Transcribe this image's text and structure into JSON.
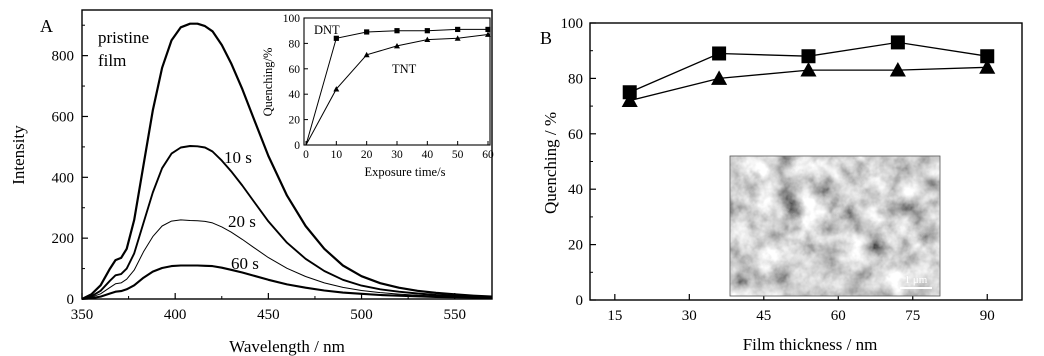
{
  "chart_data": [
    {
      "panel_label": "A",
      "type": "line",
      "xlabel": "Wavelength / nm",
      "ylabel": "Intensity",
      "xlim": [
        350,
        570
      ],
      "ylim": [
        0,
        950
      ],
      "x_ticks": [
        350,
        400,
        450,
        500,
        550
      ],
      "y_ticks": [
        0,
        200,
        400,
        600,
        800
      ],
      "grid": false,
      "x": [
        350,
        355,
        360,
        365,
        368,
        371,
        374,
        378,
        383,
        388,
        393,
        398,
        403,
        408,
        412,
        416,
        420,
        425,
        430,
        436,
        442,
        450,
        460,
        470,
        480,
        490,
        500,
        510,
        520,
        530,
        540,
        550,
        560,
        570
      ],
      "series": [
        {
          "name": "pristine film",
          "values": [
            0,
            15,
            45,
            100,
            128,
            135,
            165,
            260,
            440,
            620,
            760,
            850,
            893,
            905,
            905,
            897,
            880,
            835,
            775,
            690,
            595,
            470,
            340,
            240,
            165,
            110,
            75,
            52,
            37,
            27,
            20,
            15,
            11,
            8
          ]
        },
        {
          "name": "10 s",
          "values": [
            0,
            9,
            27,
            60,
            78,
            82,
            100,
            150,
            250,
            350,
            430,
            478,
            498,
            503,
            502,
            498,
            485,
            455,
            420,
            373,
            322,
            255,
            185,
            132,
            92,
            63,
            44,
            32,
            24,
            18,
            13,
            10,
            8,
            6
          ]
        },
        {
          "name": "20 s",
          "values": [
            0,
            6,
            17,
            38,
            50,
            53,
            65,
            95,
            155,
            205,
            240,
            256,
            260,
            258,
            257,
            255,
            250,
            237,
            220,
            196,
            170,
            136,
            101,
            74,
            53,
            38,
            28,
            21,
            16,
            12,
            10,
            8,
            6,
            5
          ]
        },
        {
          "name": "60 s",
          "values": [
            0,
            3,
            8,
            18,
            24,
            26,
            32,
            45,
            70,
            90,
            102,
            108,
            110,
            110,
            110,
            109,
            108,
            103,
            96,
            87,
            77,
            63,
            48,
            37,
            28,
            21,
            17,
            13,
            11,
            9,
            7,
            6,
            5,
            4
          ]
        }
      ],
      "annotations": [
        "pristine",
        "film",
        "10 s",
        "20 s",
        "60 s"
      ],
      "inset": {
        "type": "line",
        "xlabel": "Exposure time/s",
        "ylabel": "Quenching/%",
        "xlim": [
          0,
          60
        ],
        "ylim": [
          0,
          100
        ],
        "x_ticks": [
          0,
          10,
          20,
          30,
          40,
          50,
          60
        ],
        "y_ticks": [
          0,
          20,
          40,
          60,
          80,
          100
        ],
        "x": [
          0,
          10,
          20,
          30,
          40,
          50,
          60
        ],
        "series": [
          {
            "name": "DNT",
            "marker": "square",
            "values": [
              0,
              84,
              89,
              90,
              90,
              91,
              91
            ]
          },
          {
            "name": "TNT",
            "marker": "triangle",
            "values": [
              0,
              44,
              71,
              78,
              83,
              84,
              87
            ]
          }
        ]
      }
    },
    {
      "panel_label": "B",
      "type": "line",
      "xlabel": "Film  thickness / nm",
      "ylabel": "Quenching / %",
      "xlim": [
        10,
        97
      ],
      "ylim": [
        0,
        100
      ],
      "x_ticks": [
        15,
        30,
        45,
        60,
        75,
        90
      ],
      "y_ticks": [
        0,
        20,
        40,
        60,
        80,
        100
      ],
      "grid": false,
      "x": [
        18,
        36,
        54,
        72,
        90
      ],
      "series": [
        {
          "name": "",
          "marker": "square",
          "values": [
            75,
            89,
            88,
            93,
            88
          ]
        },
        {
          "name": "",
          "marker": "triangle",
          "values": [
            72,
            80,
            83,
            83,
            84
          ]
        }
      ],
      "inset_image": {
        "scale_bar": "1 μm"
      }
    }
  ]
}
